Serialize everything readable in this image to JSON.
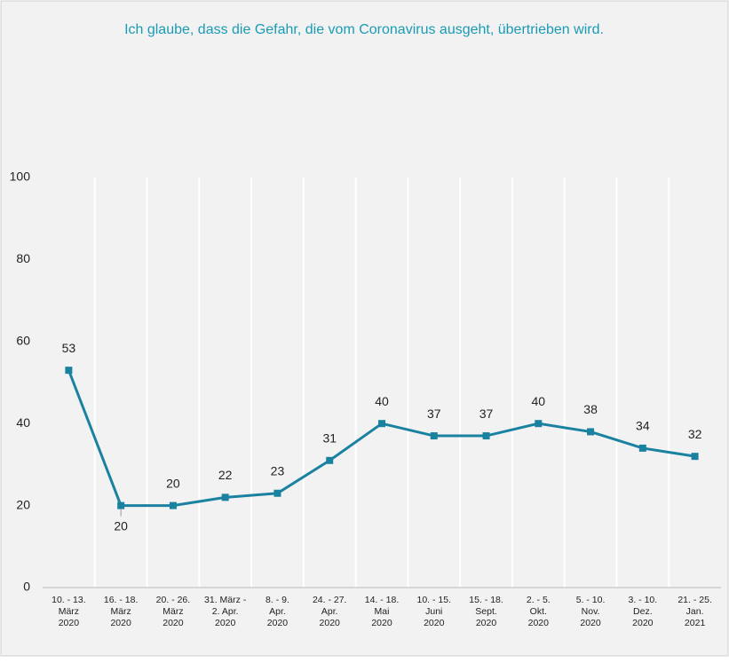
{
  "chart_data": {
    "type": "line",
    "title": "Ich glaube, dass die Gefahr, die vom Coronavirus ausgeht, übertrieben wird.",
    "categories": [
      "10. - 13.\nMärz\n2020",
      "16. - 18.\nMärz\n2020",
      "20. - 26.\nMärz\n2020",
      "31. März -\n2. Apr.\n2020",
      "8. - 9.\nApr.\n2020",
      "24. - 27.\nApr.\n2020",
      "14. - 18.\nMai\n2020",
      "10. - 15.\nJuni\n2020",
      "15. - 18.\nSept.\n2020",
      "2. - 5.\nOkt.\n2020",
      "5. - 10.\nNov.\n2020",
      "3. - 10.\nDez.\n2020",
      "21. - 25.\nJan.\n2021"
    ],
    "values": [
      53,
      20,
      20,
      22,
      23,
      31,
      40,
      37,
      37,
      40,
      38,
      34,
      32
    ],
    "color": "#1a82a0",
    "ylim": [
      0,
      100
    ],
    "yticks": [
      0,
      20,
      40,
      60,
      80,
      100
    ]
  }
}
